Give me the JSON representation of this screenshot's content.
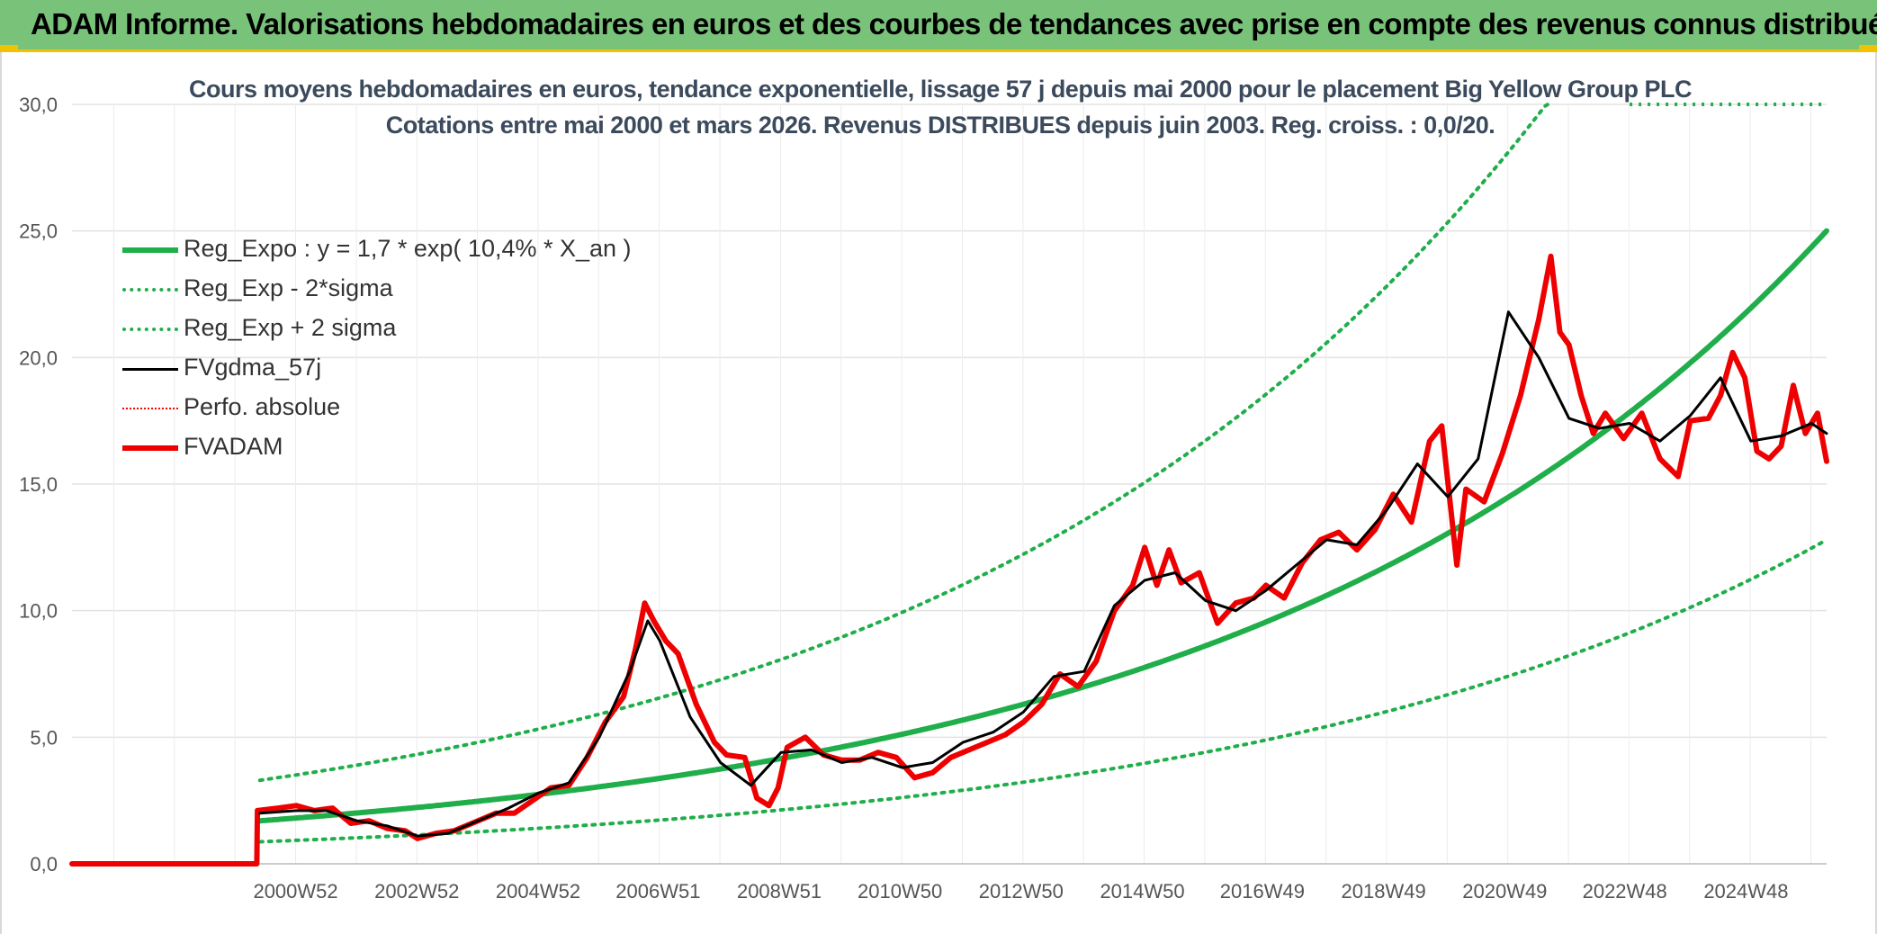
{
  "header": {
    "title": "ADAM Informe. Valorisations hebdomadaires en euros et des courbes de tendances avec prise en compte des revenus connus distribués"
  },
  "chart_data": {
    "type": "line",
    "title": "Cours moyens hebdomadaires en euros, tendance exponentielle, lissage 57 j depuis mai 2000 pour le placement Big Yellow Group PLC",
    "subtitle": "Cotations entre mai 2000 et mars 2026. Revenus DISTRIBUES depuis juin 2003. Reg. croiss. : 0,0/20.",
    "xlabel": "",
    "ylabel": "",
    "ylim": [
      0,
      30
    ],
    "xlim": [
      1997.3,
      2026.25
    ],
    "y_ticks": [
      {
        "value": 0,
        "label": "0,0"
      },
      {
        "value": 5,
        "label": "5,0"
      },
      {
        "value": 10,
        "label": "10,0"
      },
      {
        "value": 15,
        "label": "15,0"
      },
      {
        "value": 20,
        "label": "20,0"
      },
      {
        "value": 25,
        "label": "25,0"
      },
      {
        "value": 30,
        "label": "30,0"
      }
    ],
    "x_ticks": [
      {
        "value": 2000.99,
        "label": "2000W52"
      },
      {
        "value": 2002.99,
        "label": "2002W52"
      },
      {
        "value": 2004.99,
        "label": "2004W52"
      },
      {
        "value": 2006.97,
        "label": "2006W51"
      },
      {
        "value": 2008.97,
        "label": "2008W51"
      },
      {
        "value": 2010.96,
        "label": "2010W50"
      },
      {
        "value": 2012.96,
        "label": "2012W50"
      },
      {
        "value": 2014.96,
        "label": "2014W50"
      },
      {
        "value": 2016.94,
        "label": "2016W49"
      },
      {
        "value": 2018.94,
        "label": "2018W49"
      },
      {
        "value": 2020.94,
        "label": "2020W49"
      },
      {
        "value": 2022.92,
        "label": "2022W48"
      },
      {
        "value": 2024.92,
        "label": "2024W48"
      }
    ],
    "grid": true,
    "legend_position": "top-left",
    "series": [
      {
        "name": "Reg_Expo : y = 1,7 * exp( 10,4% *  X_an )",
        "color": "#1fae4a",
        "style": "solid-thick",
        "x": [
          2000.4,
          2026.25
        ],
        "y": [
          1.7,
          25.1
        ],
        "model": {
          "a": 1.7,
          "growth_rate": 0.104,
          "x0": 2000.4
        }
      },
      {
        "name": "Reg_Exp - 2*sigma",
        "color": "#1fae4a",
        "style": "dotted",
        "x": [
          2000.4,
          2026.25
        ],
        "y": [
          0.87,
          12.85
        ],
        "model": {
          "a": 0.87,
          "growth_rate": 0.104,
          "x0": 2000.4
        }
      },
      {
        "name": "Reg_Exp + 2 sigma",
        "color": "#1fae4a",
        "style": "dotted",
        "x": [
          2000.4,
          2026.25
        ],
        "y": [
          3.3,
          30
        ],
        "model": {
          "a": 3.3,
          "growth_rate": 0.104,
          "x0": 2000.4,
          "cap": 30
        }
      },
      {
        "name": "FVgdma_57j",
        "color": "#000000",
        "style": "solid",
        "x": [
          2000.4,
          2001.0,
          2001.5,
          2002.0,
          2002.5,
          2003.0,
          2003.5,
          2004.0,
          2004.5,
          2005.0,
          2005.5,
          2006.0,
          2006.5,
          2006.8,
          2007.0,
          2007.5,
          2008.0,
          2008.5,
          2009.0,
          2009.5,
          2010.0,
          2010.5,
          2011.0,
          2011.5,
          2012.0,
          2012.5,
          2013.0,
          2013.5,
          2014.0,
          2014.5,
          2015.0,
          2015.5,
          2016.0,
          2016.5,
          2017.0,
          2017.5,
          2018.0,
          2018.5,
          2019.0,
          2019.5,
          2020.0,
          2020.5,
          2021.0,
          2021.5,
          2022.0,
          2022.5,
          2023.0,
          2023.5,
          2024.0,
          2024.5,
          2025.0,
          2025.5,
          2026.0,
          2026.25
        ],
        "y": [
          2.0,
          2.1,
          2.1,
          1.7,
          1.5,
          1.1,
          1.2,
          1.7,
          2.2,
          2.8,
          3.2,
          5.0,
          7.6,
          9.6,
          8.8,
          5.8,
          4.0,
          3.1,
          4.4,
          4.5,
          4.0,
          4.2,
          3.8,
          4.0,
          4.8,
          5.2,
          6.0,
          7.4,
          7.6,
          10.2,
          11.2,
          11.5,
          10.4,
          10.0,
          10.8,
          11.8,
          12.8,
          12.6,
          14.0,
          15.8,
          14.5,
          16.0,
          21.8,
          20.0,
          17.6,
          17.2,
          17.4,
          16.7,
          17.7,
          19.2,
          16.7,
          16.9,
          17.4,
          17.0
        ]
      },
      {
        "name": "Perfo. absolue",
        "color": "#ff0000",
        "style": "dotted-thin",
        "x": [],
        "y": []
      },
      {
        "name": "FVADAM",
        "color": "#ee0000",
        "style": "solid-thick",
        "x": [
          1997.3,
          2000.35,
          2000.36,
          2000.7,
          2001.0,
          2001.3,
          2001.6,
          2001.9,
          2002.2,
          2002.5,
          2002.8,
          2003.0,
          2003.3,
          2003.6,
          2003.9,
          2004.3,
          2004.6,
          2004.9,
          2005.2,
          2005.5,
          2005.8,
          2006.1,
          2006.4,
          2006.6,
          2006.75,
          2006.9,
          2007.1,
          2007.3,
          2007.6,
          2007.9,
          2008.1,
          2008.4,
          2008.6,
          2008.8,
          2008.95,
          2009.1,
          2009.4,
          2009.7,
          2010.0,
          2010.3,
          2010.6,
          2010.9,
          2011.2,
          2011.5,
          2011.8,
          2012.1,
          2012.4,
          2012.7,
          2013.0,
          2013.3,
          2013.6,
          2013.9,
          2014.2,
          2014.5,
          2014.8,
          2015.0,
          2015.2,
          2015.4,
          2015.6,
          2015.9,
          2016.2,
          2016.5,
          2016.8,
          2017.0,
          2017.3,
          2017.6,
          2017.9,
          2018.2,
          2018.5,
          2018.8,
          2019.1,
          2019.4,
          2019.7,
          2019.9,
          2020.05,
          2020.15,
          2020.3,
          2020.6,
          2020.9,
          2021.2,
          2021.5,
          2021.7,
          2021.85,
          2022.0,
          2022.2,
          2022.4,
          2022.6,
          2022.9,
          2023.2,
          2023.5,
          2023.8,
          2024.0,
          2024.3,
          2024.5,
          2024.7,
          2024.9,
          2025.1,
          2025.3,
          2025.5,
          2025.7,
          2025.9,
          2026.1,
          2026.25
        ],
        "y": [
          0,
          0,
          2.1,
          2.2,
          2.3,
          2.1,
          2.2,
          1.6,
          1.7,
          1.4,
          1.3,
          1.0,
          1.2,
          1.3,
          1.6,
          2.0,
          2.0,
          2.5,
          3.0,
          3.1,
          4.2,
          5.6,
          6.6,
          8.5,
          10.3,
          9.6,
          8.8,
          8.3,
          6.3,
          4.8,
          4.3,
          4.2,
          2.6,
          2.3,
          3.0,
          4.6,
          5.0,
          4.3,
          4.1,
          4.1,
          4.4,
          4.2,
          3.4,
          3.6,
          4.2,
          4.5,
          4.8,
          5.1,
          5.6,
          6.3,
          7.5,
          7.0,
          8.0,
          10.0,
          11.0,
          12.5,
          11.0,
          12.4,
          11.1,
          11.5,
          9.5,
          10.3,
          10.5,
          11.0,
          10.5,
          11.9,
          12.8,
          13.1,
          12.4,
          13.2,
          14.6,
          13.5,
          16.7,
          17.3,
          14.0,
          11.8,
          14.8,
          14.3,
          16.2,
          18.5,
          21.5,
          24.0,
          21.0,
          20.5,
          18.5,
          17.0,
          17.8,
          16.8,
          17.8,
          16.0,
          15.3,
          17.5,
          17.6,
          18.5,
          20.2,
          19.2,
          16.3,
          16.0,
          16.5,
          18.9,
          17.0,
          17.8,
          15.9
        ]
      }
    ]
  }
}
